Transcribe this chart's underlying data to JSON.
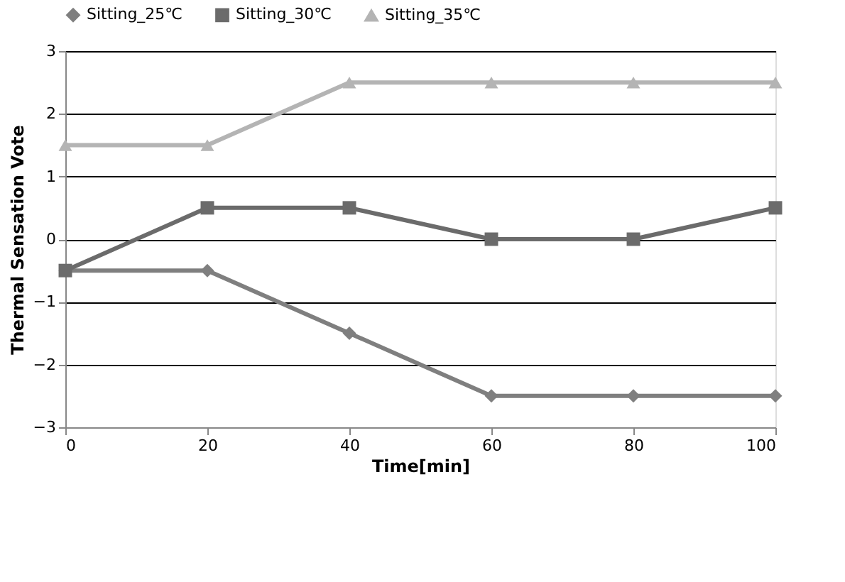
{
  "chart_data": {
    "type": "line",
    "xlabel": "Time[min]",
    "ylabel": "Thermal Sensation Vote",
    "x": [
      0,
      20,
      40,
      60,
      80,
      100
    ],
    "series": [
      {
        "name": "Sitting_25℃",
        "color": "#7f7f7f",
        "marker": "diamond",
        "values": [
          -0.5,
          -0.5,
          -1.5,
          -2.5,
          -2.5,
          -2.5
        ]
      },
      {
        "name": "Sitting_30℃",
        "color": "#6b6b6b",
        "marker": "square",
        "values": [
          -0.5,
          0.5,
          0.5,
          0,
          0,
          0.5
        ]
      },
      {
        "name": "Sitting_35℃",
        "color": "#b4b4b4",
        "marker": "triangle",
        "values": [
          1.5,
          1.5,
          2.5,
          2.5,
          2.5,
          2.5
        ]
      }
    ],
    "xlim": [
      0,
      100
    ],
    "xticks": [
      0,
      20,
      40,
      60,
      80,
      100
    ],
    "ylim": [
      -3,
      3
    ],
    "yticks": [
      -3,
      -2,
      -1,
      0,
      1,
      2,
      3
    ],
    "grid": "y",
    "legend": "top",
    "line_style": "solid"
  }
}
